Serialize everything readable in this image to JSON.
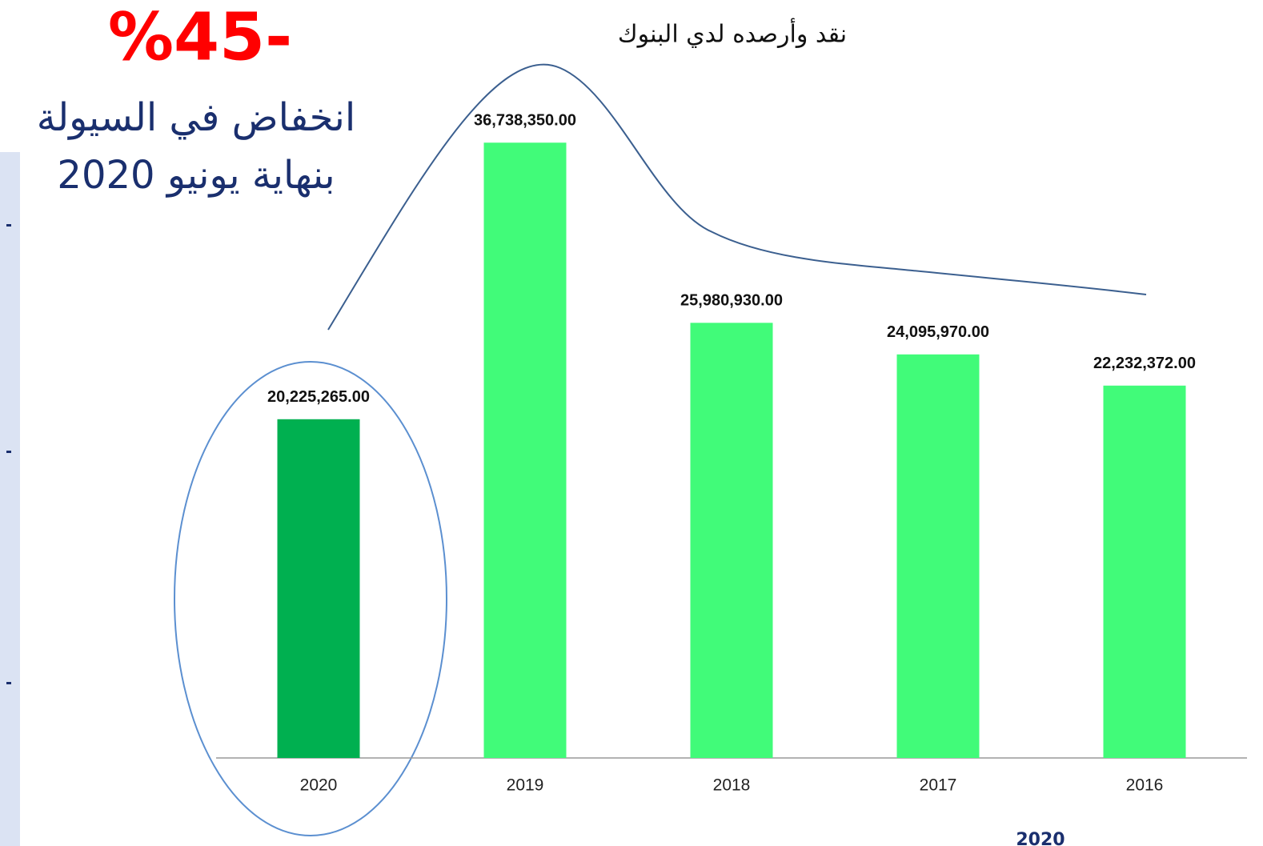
{
  "chart_data": {
    "type": "bar",
    "title": "نقد وأرصده لدي البنوك",
    "annotations": [
      "%45-",
      "انخفاض في السيولة",
      "بنهاية يونيو 2020",
      "2020"
    ],
    "categories": [
      "2020",
      "2019",
      "2018",
      "2017",
      "2016"
    ],
    "values": [
      20225265,
      36738350,
      25980930,
      24095970,
      22232372
    ],
    "value_labels": [
      "20,225,265.00",
      "36,738,350.00",
      "25,980,930.00",
      "24,095,970.00",
      "22,232,372.00"
    ],
    "colors": [
      "#00b050",
      "#41fb79",
      "#41fb79",
      "#41fb79",
      "#41fb79"
    ],
    "ylim": [
      0,
      40000000
    ],
    "grid": false
  }
}
